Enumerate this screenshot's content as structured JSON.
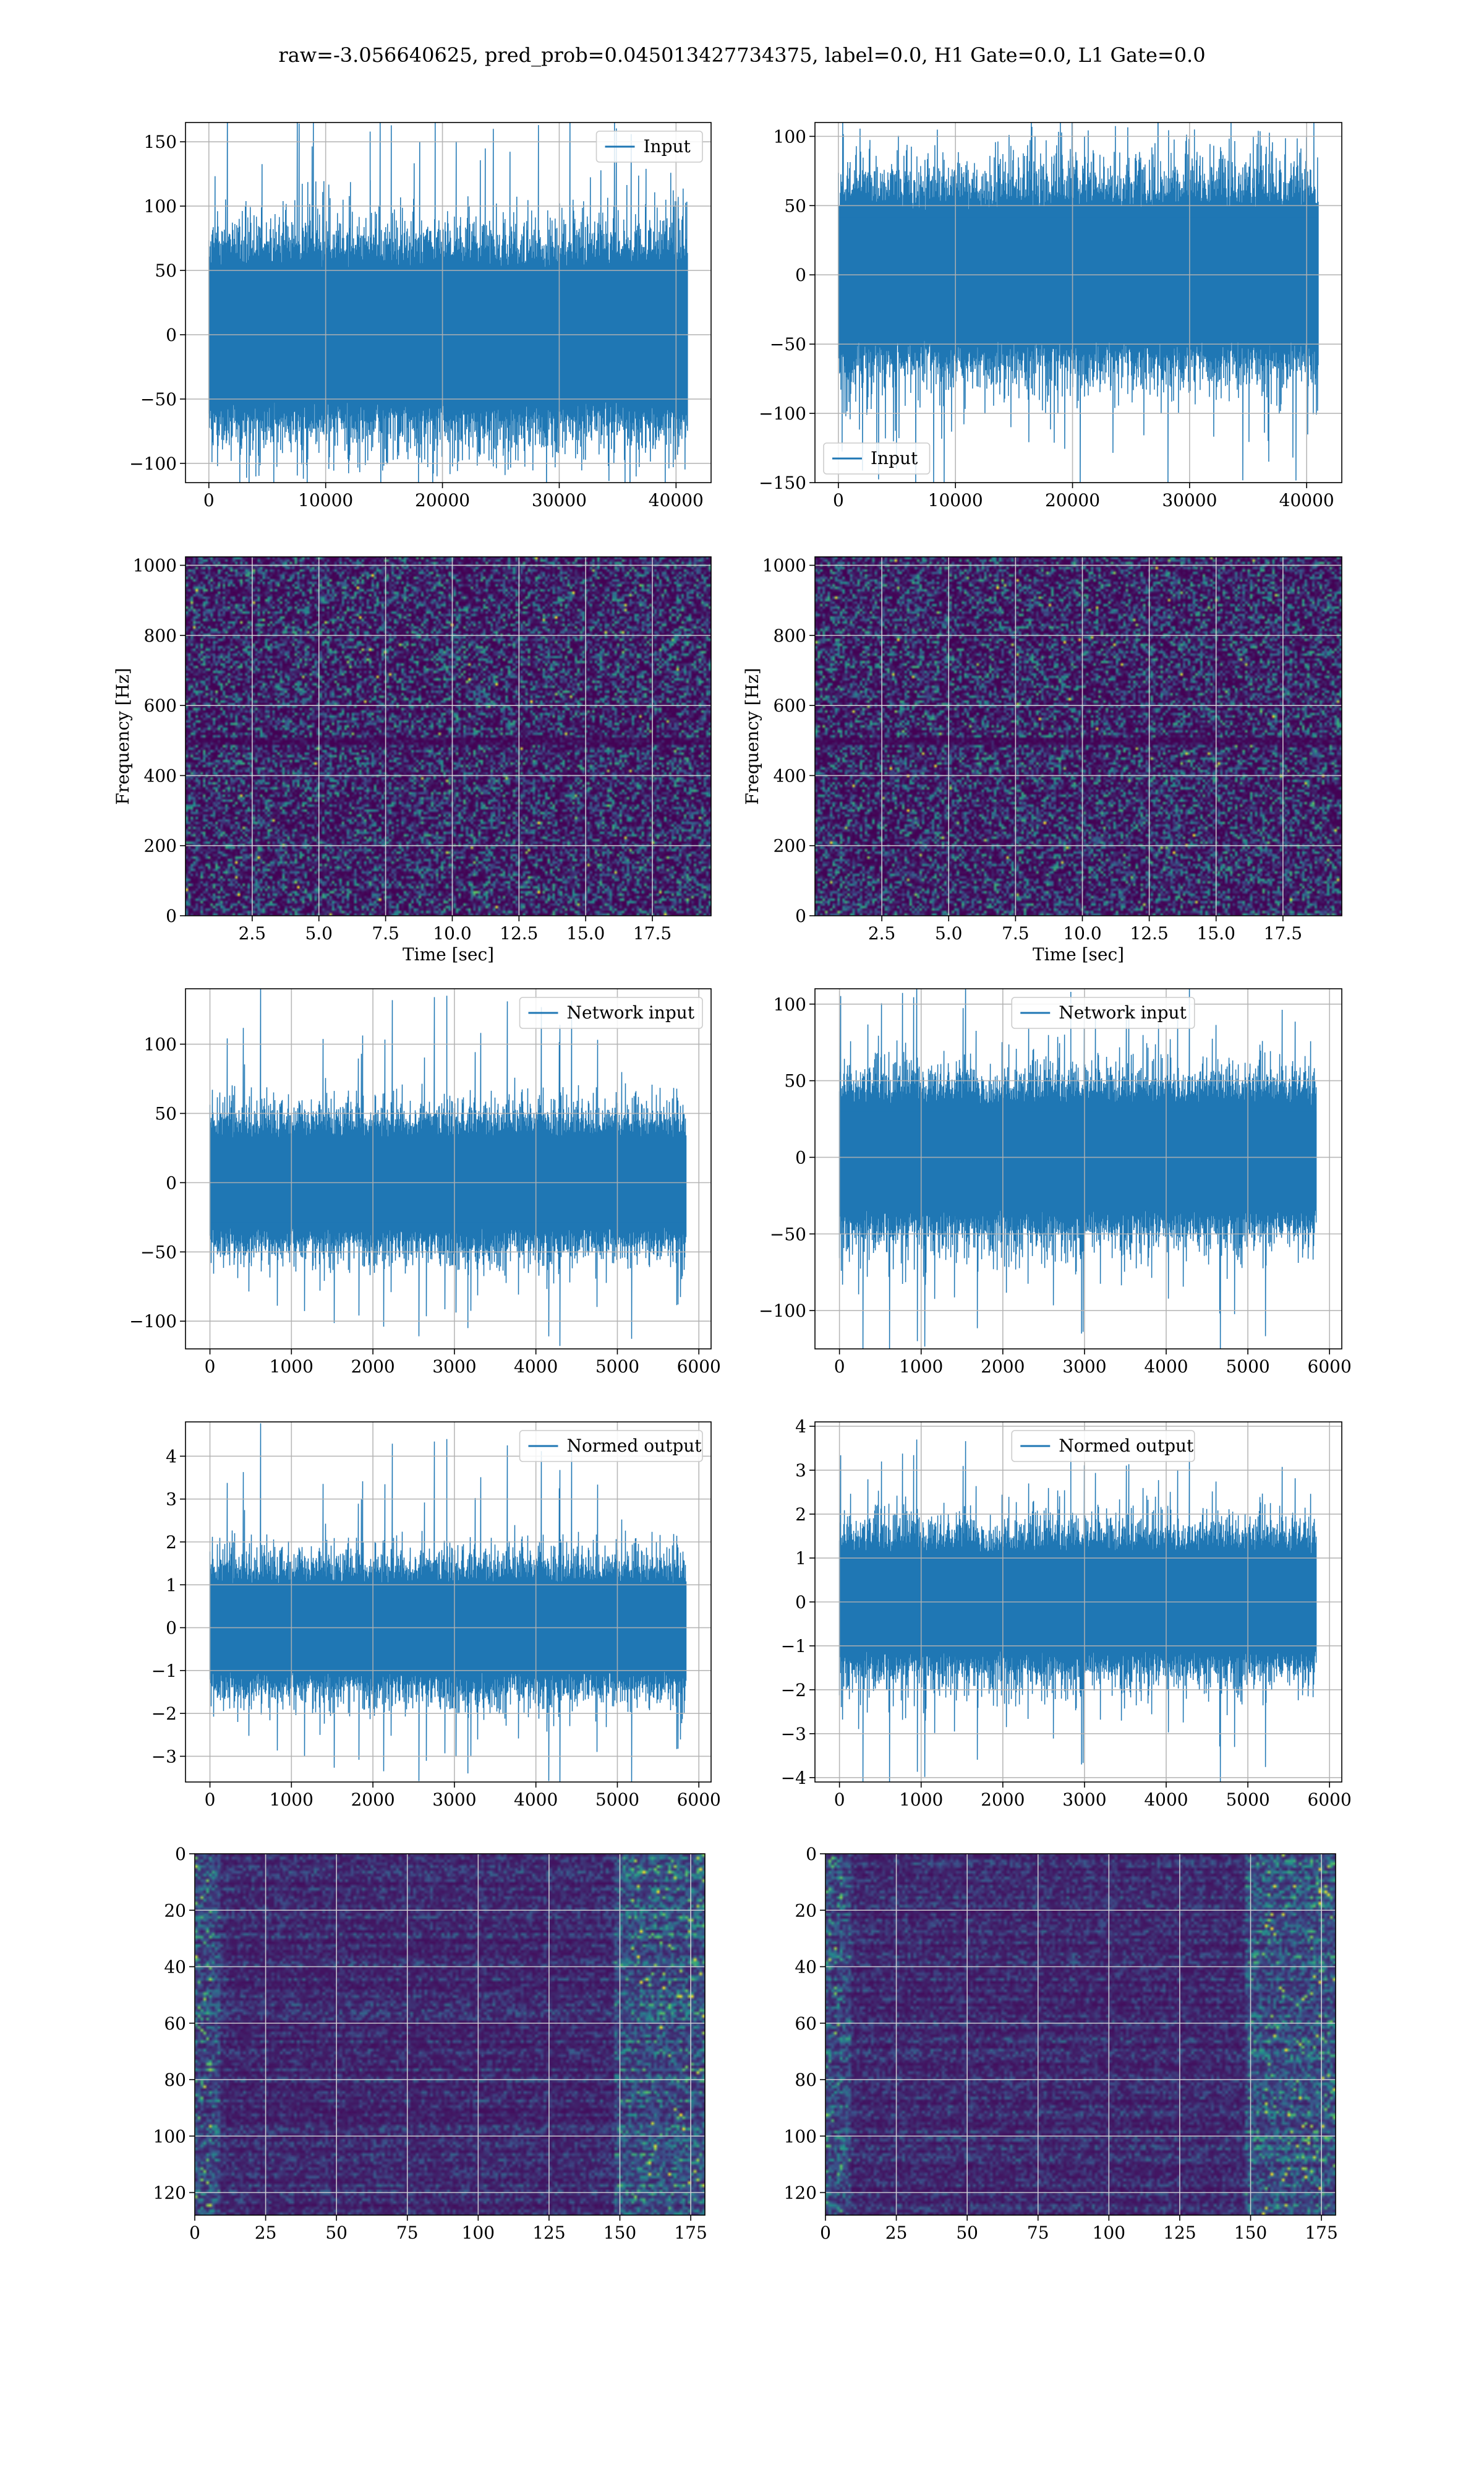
{
  "figure": {
    "title": "raw=-3.056640625, pred_prob=0.045013427734375, label=0.0, H1 Gate=0.0, L1 Gate=0.0"
  },
  "colors": {
    "line": "#1f77b4",
    "grid": "#b0b0b0",
    "viridis_dark": "#440154",
    "viridis_mid": "#3b528b",
    "viridis_teal": "#21918c",
    "viridis_green": "#5ec962",
    "viridis_yellow": "#fde725"
  },
  "chart_data": [
    {
      "id": "input_h1",
      "type": "line",
      "title": "",
      "legend": {
        "label": "Input",
        "position": "top-right"
      },
      "xlim": [
        -2000,
        43000
      ],
      "ylim": [
        -115,
        165
      ],
      "xticks": [
        0,
        10000,
        20000,
        30000,
        40000
      ],
      "yticks": [
        -100,
        -50,
        0,
        50,
        100,
        150
      ],
      "xticklabels": [
        "0",
        "10000",
        "20000",
        "30000",
        "40000"
      ],
      "yticklabels": [
        "−100",
        "−50",
        "0",
        "50",
        "100",
        "150"
      ],
      "xlabel": "",
      "ylabel": "",
      "signal": {
        "x_start": 0,
        "x_end": 40960,
        "band_low": -60,
        "band_high": 60,
        "spike_max": 158,
        "spike_min": -112,
        "seed": 11
      }
    },
    {
      "id": "input_l1",
      "type": "line",
      "title": "",
      "legend": {
        "label": "Input",
        "position": "bottom-left"
      },
      "xlim": [
        -2000,
        43000
      ],
      "ylim": [
        -150,
        110
      ],
      "xticks": [
        0,
        10000,
        20000,
        30000,
        40000
      ],
      "yticks": [
        -150,
        -100,
        -50,
        0,
        50,
        100
      ],
      "xticklabels": [
        "0",
        "10000",
        "20000",
        "30000",
        "40000"
      ],
      "yticklabels": [
        "−150",
        "−100",
        "−50",
        "0",
        "50",
        "100"
      ],
      "xlabel": "",
      "ylabel": "",
      "signal": {
        "x_start": 0,
        "x_end": 40960,
        "band_low": -55,
        "band_high": 55,
        "spike_max": 105,
        "spike_min": -140,
        "seed": 23
      }
    },
    {
      "id": "spectrogram_h1",
      "type": "heatmap",
      "title": "",
      "xlim": [
        0,
        19.7
      ],
      "ylim": [
        0,
        1024
      ],
      "xticks": [
        2.5,
        5.0,
        7.5,
        10.0,
        12.5,
        15.0,
        17.5
      ],
      "yticks": [
        0,
        200,
        400,
        600,
        800,
        1000
      ],
      "xticklabels": [
        "2.5",
        "5.0",
        "7.5",
        "10.0",
        "12.5",
        "15.0",
        "17.5"
      ],
      "yticklabels": [
        "0",
        "200",
        "400",
        "600",
        "800",
        "1000"
      ],
      "xlabel": "Time [sec]",
      "ylabel": "Frequency [Hz]",
      "colormap": "viridis",
      "seed": 31,
      "dark_band_hz": 500
    },
    {
      "id": "spectrogram_l1",
      "type": "heatmap",
      "title": "",
      "xlim": [
        0,
        19.7
      ],
      "ylim": [
        0,
        1024
      ],
      "xticks": [
        2.5,
        5.0,
        7.5,
        10.0,
        12.5,
        15.0,
        17.5
      ],
      "yticks": [
        0,
        200,
        400,
        600,
        800,
        1000
      ],
      "xticklabels": [
        "2.5",
        "5.0",
        "7.5",
        "10.0",
        "12.5",
        "15.0",
        "17.5"
      ],
      "yticklabels": [
        "0",
        "200",
        "400",
        "600",
        "800",
        "1000"
      ],
      "xlabel": "Time [sec]",
      "ylabel": "Frequency [Hz]",
      "colormap": "viridis",
      "seed": 47,
      "dark_band_hz": 500
    },
    {
      "id": "network_input_h1",
      "type": "line",
      "title": "",
      "legend": {
        "label": "Network input",
        "position": "top-right"
      },
      "xlim": [
        -300,
        6150
      ],
      "ylim": [
        -120,
        140
      ],
      "xticks": [
        0,
        1000,
        2000,
        3000,
        4000,
        5000,
        6000
      ],
      "yticks": [
        -100,
        -50,
        0,
        50,
        100
      ],
      "xticklabels": [
        "0",
        "1000",
        "2000",
        "3000",
        "4000",
        "5000",
        "6000"
      ],
      "yticklabels": [
        "−100",
        "−50",
        "0",
        "50",
        "100"
      ],
      "xlabel": "",
      "ylabel": "",
      "signal": {
        "x_start": 0,
        "x_end": 5840,
        "band_low": -38,
        "band_high": 38,
        "spike_max": 135,
        "spike_min": -105,
        "seed": 53
      }
    },
    {
      "id": "network_input_l1",
      "type": "line",
      "title": "",
      "legend": {
        "label": "Network input",
        "position": "top-center"
      },
      "xlim": [
        -300,
        6150
      ],
      "ylim": [
        -125,
        110
      ],
      "xticks": [
        0,
        1000,
        2000,
        3000,
        4000,
        5000,
        6000
      ],
      "yticks": [
        -100,
        -50,
        0,
        50,
        100
      ],
      "xticklabels": [
        "0",
        "1000",
        "2000",
        "3000",
        "4000",
        "5000",
        "6000"
      ],
      "yticklabels": [
        "−100",
        "−50",
        "0",
        "50",
        "100"
      ],
      "xlabel": "",
      "ylabel": "",
      "signal": {
        "x_start": 0,
        "x_end": 5840,
        "band_low": -40,
        "band_high": 40,
        "spike_max": 108,
        "spike_min": -115,
        "seed": 67
      }
    },
    {
      "id": "normed_output_h1",
      "type": "line",
      "title": "",
      "legend": {
        "label": "Normed output",
        "position": "top-right"
      },
      "xlim": [
        -300,
        6150
      ],
      "ylim": [
        -3.6,
        4.8
      ],
      "xticks": [
        0,
        1000,
        2000,
        3000,
        4000,
        5000,
        6000
      ],
      "yticks": [
        -3,
        -2,
        -1,
        0,
        1,
        2,
        3,
        4
      ],
      "xticklabels": [
        "0",
        "1000",
        "2000",
        "3000",
        "4000",
        "5000",
        "6000"
      ],
      "yticklabels": [
        "−3",
        "−2",
        "−1",
        "0",
        "1",
        "2",
        "3",
        "4"
      ],
      "xlabel": "",
      "ylabel": "",
      "signal": {
        "x_start": 0,
        "x_end": 5840,
        "band_low": -1.2,
        "band_high": 1.2,
        "spike_max": 4.4,
        "spike_min": -3.4,
        "seed": 53
      }
    },
    {
      "id": "normed_output_l1",
      "type": "line",
      "title": "",
      "legend": {
        "label": "Normed output",
        "position": "top-center"
      },
      "xlim": [
        -300,
        6150
      ],
      "ylim": [
        -4.1,
        4.1
      ],
      "xticks": [
        0,
        1000,
        2000,
        3000,
        4000,
        5000,
        6000
      ],
      "yticks": [
        -4,
        -3,
        -2,
        -1,
        0,
        1,
        2,
        3,
        4
      ],
      "xticklabels": [
        "0",
        "1000",
        "2000",
        "3000",
        "4000",
        "5000",
        "6000"
      ],
      "yticklabels": [
        "−4",
        "−3",
        "−2",
        "−1",
        "0",
        "1",
        "2",
        "3",
        "4"
      ],
      "xlabel": "",
      "ylabel": "",
      "signal": {
        "x_start": 0,
        "x_end": 5840,
        "band_low": -1.3,
        "band_high": 1.3,
        "spike_max": 3.4,
        "spike_min": -3.7,
        "seed": 67
      }
    },
    {
      "id": "qtransform_h1",
      "type": "heatmap",
      "title": "",
      "xlim": [
        0,
        180
      ],
      "ylim": [
        128,
        0
      ],
      "xticks": [
        0,
        25,
        50,
        75,
        100,
        125,
        150,
        175
      ],
      "yticks": [
        0,
        20,
        40,
        60,
        80,
        100,
        120
      ],
      "xticklabels": [
        "0",
        "25",
        "50",
        "75",
        "100",
        "125",
        "150",
        "175"
      ],
      "yticklabels": [
        "0",
        "20",
        "40",
        "60",
        "80",
        "100",
        "120"
      ],
      "xlabel": "",
      "ylabel": "",
      "colormap": "viridis",
      "seed": 71,
      "rows": 128,
      "cols": 180
    },
    {
      "id": "qtransform_l1",
      "type": "heatmap",
      "title": "",
      "xlim": [
        0,
        180
      ],
      "ylim": [
        128,
        0
      ],
      "xticks": [
        0,
        25,
        50,
        75,
        100,
        125,
        150,
        175
      ],
      "yticks": [
        0,
        20,
        40,
        60,
        80,
        100,
        120
      ],
      "xticklabels": [
        "0",
        "25",
        "50",
        "75",
        "100",
        "125",
        "150",
        "175"
      ],
      "yticklabels": [
        "0",
        "20",
        "40",
        "60",
        "80",
        "100",
        "120"
      ],
      "xlabel": "",
      "ylabel": "",
      "colormap": "viridis",
      "seed": 89,
      "rows": 128,
      "cols": 180
    }
  ]
}
